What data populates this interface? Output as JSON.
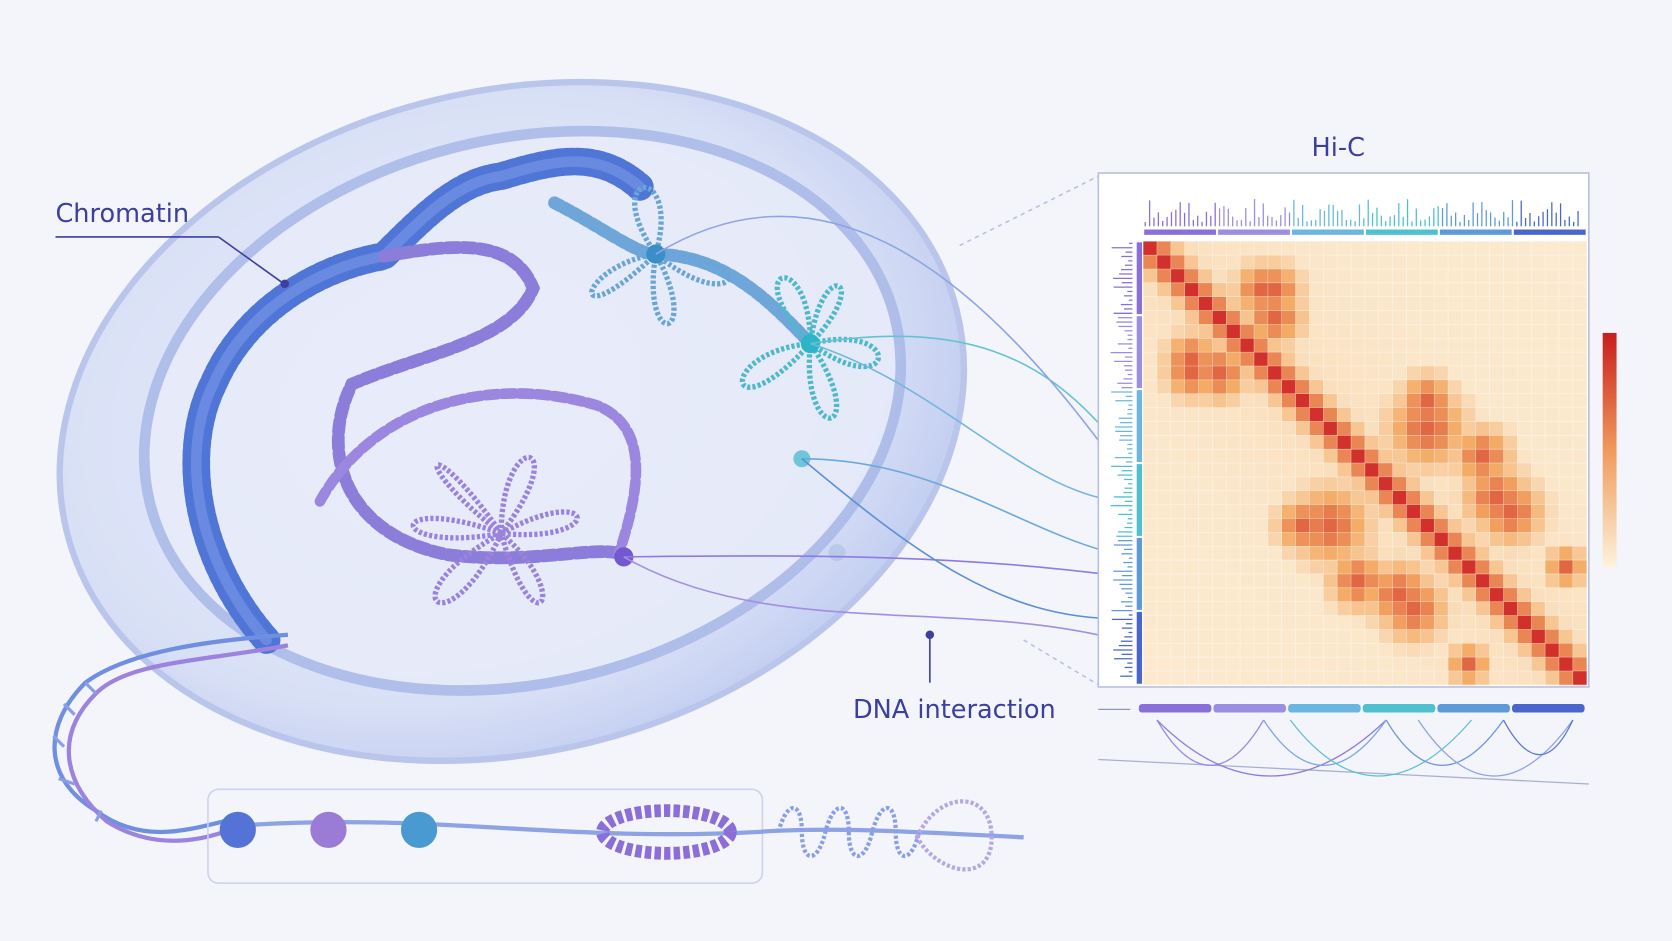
{
  "labels": {
    "chromatin": "Chromatin",
    "hic": "Hi-C",
    "dna_interaction": "DNA interaction"
  }
}
